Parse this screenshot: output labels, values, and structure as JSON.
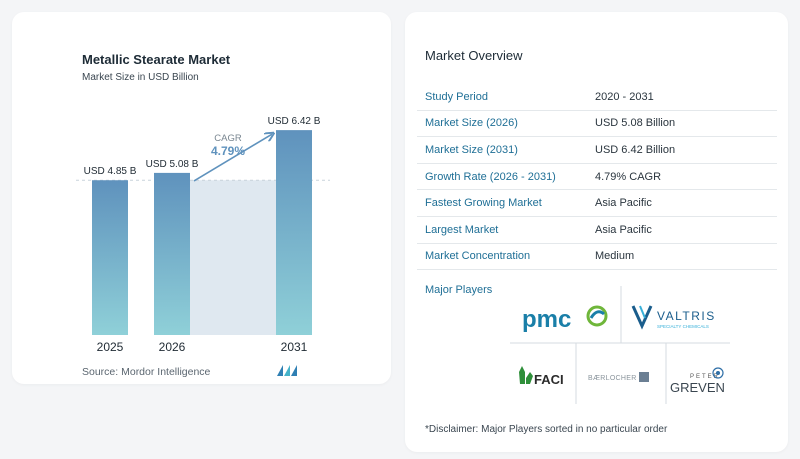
{
  "chart_data": {
    "type": "bar",
    "title": "Metallic Stearate Market",
    "subtitle": "Market Size in USD Billion",
    "categories": [
      "2025",
      "2026",
      "2031"
    ],
    "values": [
      4.85,
      5.08,
      6.42
    ],
    "value_labels": [
      "USD 4.85 B",
      "USD 5.08 B",
      "USD 6.42 B"
    ],
    "cagr_label": "CAGR",
    "cagr_value": "4.79%",
    "ylim": [
      0,
      6.8
    ],
    "grid": false,
    "colors": {
      "bar_top": "#5f92bd",
      "bar_bottom": "#8fd0d8",
      "arrow": "#5f92bd",
      "band": "#dfe8f0"
    }
  },
  "source": "Source:  Mordor Intelligence",
  "overview": {
    "title": "Market Overview",
    "rows": [
      {
        "key": "Study Period",
        "value": "2020 - 2031"
      },
      {
        "key": "Market Size (2026)",
        "value": "USD 5.08 Billion"
      },
      {
        "key": "Market Size (2031)",
        "value": "USD 6.42 Billion"
      },
      {
        "key": "Growth Rate (2026 - 2031)",
        "value": "4.79% CAGR"
      },
      {
        "key": "Fastest Growing Market",
        "value": "Asia Pacific"
      },
      {
        "key": "Largest Market",
        "value": "Asia Pacific"
      },
      {
        "key": "Market Concentration",
        "value": "Medium"
      }
    ],
    "players_label": "Major Players",
    "players": {
      "pmc": "pmc",
      "valtris": "VALTRIS",
      "valtris_sub": "SPECIALTY CHEMICALS",
      "faci": "FACI",
      "baerlocher": "BÆRLOCHER",
      "peter_top": "PETER",
      "greven": "GREVEN"
    },
    "disclaimer": "*Disclaimer: Major Players sorted in no particular order"
  }
}
